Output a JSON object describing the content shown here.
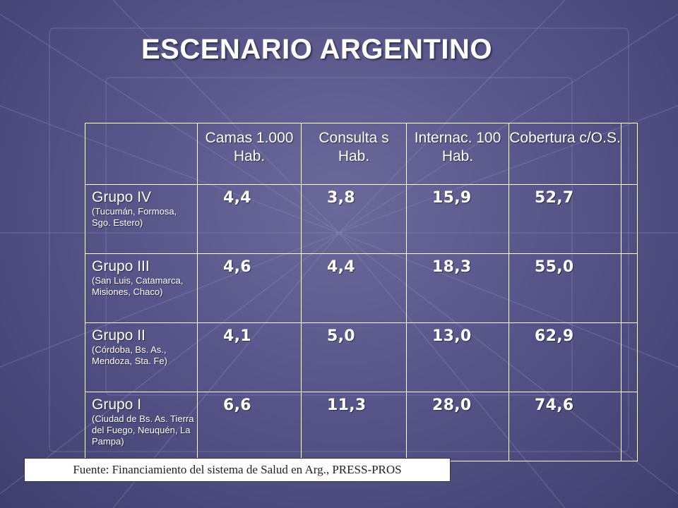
{
  "title": "ESCENARIO ARGENTINO",
  "table": {
    "headers": [
      "",
      "Camas 1.000 Hab.",
      "Consulta s Hab.",
      "Internac. 100 Hab.",
      "Cobertura c/O.S.",
      ""
    ],
    "rows": [
      {
        "name": "Grupo IV",
        "sub": "(Tucumán, Formosa, Sgo. Estero)",
        "values": [
          "4,4",
          "3,8",
          "15,9",
          "52,7"
        ]
      },
      {
        "name": "Grupo III",
        "sub": "(San Luis, Catamarca, Misiones, Chaco)",
        "values": [
          "4,6",
          "4,4",
          "18,3",
          "55,0"
        ]
      },
      {
        "name": "Grupo II",
        "sub": "(Córdoba, Bs. As., Mendoza, Sta. Fe)",
        "values": [
          "4,1",
          "5,0",
          "13,0",
          "62,9"
        ]
      },
      {
        "name": "Grupo I",
        "sub": "(Ciudad de Bs. As. Tierra del Fuego, Neuquén, La Pampa)",
        "values": [
          "6,6",
          "11,3",
          "28,0",
          "74,6"
        ]
      }
    ]
  },
  "source": "Fuente: Financiamiento del sistema de Salud en Arg., PRESS-PROS",
  "colors": {
    "background": "#56568a",
    "text": "#ffffff",
    "grid": "#ffffff"
  }
}
